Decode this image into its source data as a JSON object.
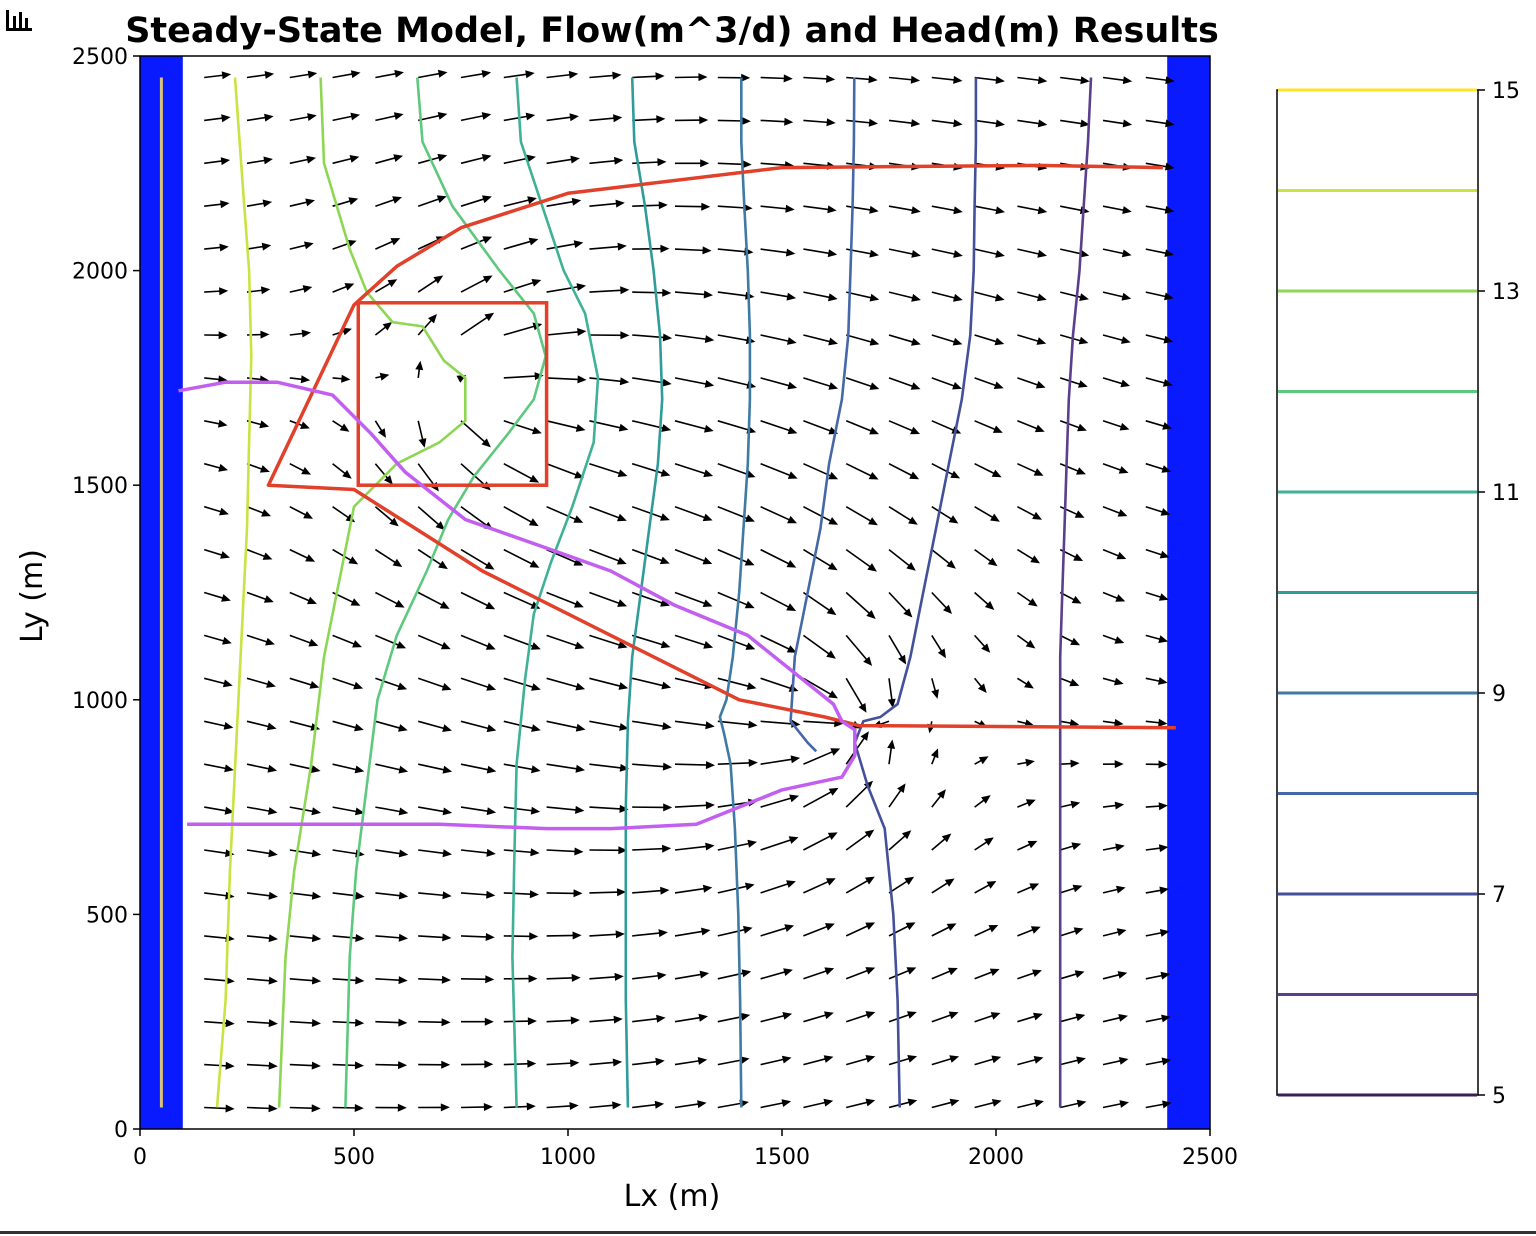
{
  "toolbar": {
    "icon": "bar-chart-icon"
  },
  "chart_data": {
    "type": "contour",
    "title": "Steady-State Model, Flow(m^3/d) and Head(m) Results",
    "xlabel": "Lx (m)",
    "ylabel": "Ly (m)",
    "xlim": [
      0,
      2500
    ],
    "ylim": [
      0,
      2500
    ],
    "xticks": [
      0,
      500,
      1000,
      1500,
      2000,
      2500
    ],
    "yticks": [
      0,
      500,
      1000,
      1500,
      2000,
      2500
    ],
    "colors": {
      "boundary": "#0a1aff",
      "red_line": "#e1402a",
      "purple_line": "#c25ef0",
      "left_line": "#d8c27a"
    },
    "constant_head_boundaries": [
      {
        "x": [
          0,
          100
        ],
        "y": [
          0,
          2500
        ]
      },
      {
        "x": [
          2400,
          2500
        ],
        "y": [
          0,
          2500
        ]
      }
    ],
    "head_contours": [
      {
        "level": 14.0,
        "color": "#c7e443",
        "points": [
          [
            222,
            2450
          ],
          [
            240,
            2200
          ],
          [
            255,
            2000
          ],
          [
            260,
            1800
          ],
          [
            255,
            1600
          ],
          [
            250,
            1400
          ],
          [
            240,
            1200
          ],
          [
            225,
            900
          ],
          [
            210,
            600
          ],
          [
            200,
            300
          ],
          [
            180,
            50
          ]
        ]
      },
      {
        "level": 13.0,
        "color": "#8ed654",
        "points": [
          [
            422,
            2450
          ],
          [
            430,
            2250
          ],
          [
            490,
            2050
          ],
          [
            530,
            1950
          ],
          [
            590,
            1880
          ],
          [
            660,
            1870
          ],
          [
            710,
            1790
          ],
          [
            760,
            1750
          ],
          [
            760,
            1650
          ],
          [
            700,
            1600
          ],
          [
            600,
            1550
          ],
          [
            500,
            1450
          ],
          [
            470,
            1300
          ],
          [
            430,
            1100
          ],
          [
            400,
            850
          ],
          [
            360,
            600
          ],
          [
            340,
            400
          ],
          [
            325,
            50
          ]
        ]
      },
      {
        "level": 12.0,
        "color": "#5ec87e",
        "points": [
          [
            648,
            2450
          ],
          [
            660,
            2300
          ],
          [
            730,
            2150
          ],
          [
            840,
            2000
          ],
          [
            920,
            1900
          ],
          [
            948,
            1800
          ],
          [
            920,
            1700
          ],
          [
            860,
            1620
          ],
          [
            780,
            1520
          ],
          [
            720,
            1420
          ],
          [
            670,
            1300
          ],
          [
            600,
            1150
          ],
          [
            555,
            1000
          ],
          [
            530,
            800
          ],
          [
            505,
            600
          ],
          [
            490,
            400
          ],
          [
            480,
            50
          ]
        ]
      },
      {
        "level": 11.0,
        "color": "#3fb197",
        "points": [
          [
            880,
            2450
          ],
          [
            890,
            2300
          ],
          [
            940,
            2150
          ],
          [
            990,
            2000
          ],
          [
            1040,
            1900
          ],
          [
            1070,
            1750
          ],
          [
            1060,
            1600
          ],
          [
            1010,
            1450
          ],
          [
            960,
            1320
          ],
          [
            920,
            1200
          ],
          [
            900,
            1050
          ],
          [
            880,
            850
          ],
          [
            875,
            650
          ],
          [
            870,
            400
          ],
          [
            880,
            50
          ]
        ]
      },
      {
        "level": 10.0,
        "color": "#2f9c9a",
        "points": [
          [
            1150,
            2450
          ],
          [
            1155,
            2300
          ],
          [
            1180,
            2150
          ],
          [
            1200,
            2000
          ],
          [
            1215,
            1850
          ],
          [
            1220,
            1700
          ],
          [
            1210,
            1550
          ],
          [
            1190,
            1400
          ],
          [
            1170,
            1250
          ],
          [
            1150,
            1100
          ],
          [
            1140,
            950
          ],
          [
            1135,
            750
          ],
          [
            1135,
            500
          ],
          [
            1135,
            300
          ],
          [
            1140,
            50
          ]
        ]
      },
      {
        "level": 9.0,
        "color": "#3e7aa4",
        "points": [
          [
            1405,
            2450
          ],
          [
            1405,
            2300
          ],
          [
            1412,
            2150
          ],
          [
            1420,
            2000
          ],
          [
            1425,
            1850
          ],
          [
            1425,
            1700
          ],
          [
            1420,
            1550
          ],
          [
            1410,
            1400
          ],
          [
            1400,
            1250
          ],
          [
            1385,
            1100
          ],
          [
            1370,
            1000
          ],
          [
            1355,
            960
          ],
          [
            1365,
            920
          ],
          [
            1380,
            850
          ],
          [
            1390,
            700
          ],
          [
            1398,
            500
          ],
          [
            1402,
            300
          ],
          [
            1405,
            50
          ]
        ]
      },
      {
        "level": 8.0,
        "color": "#4568a8",
        "points": [
          [
            1669,
            2450
          ],
          [
            1668,
            2300
          ],
          [
            1665,
            2150
          ],
          [
            1660,
            2000
          ],
          [
            1655,
            1850
          ],
          [
            1640,
            1700
          ],
          [
            1610,
            1550
          ],
          [
            1590,
            1400
          ],
          [
            1560,
            1250
          ],
          [
            1530,
            1100
          ],
          [
            1520,
            950
          ],
          [
            1560,
            900
          ],
          [
            1580,
            880
          ]
        ]
      },
      {
        "level": 7.0,
        "color": "#44509a",
        "points": [
          [
            1953,
            2450
          ],
          [
            1953,
            2300
          ],
          [
            1950,
            2150
          ],
          [
            1948,
            2000
          ],
          [
            1940,
            1850
          ],
          [
            1920,
            1700
          ],
          [
            1890,
            1550
          ],
          [
            1860,
            1400
          ],
          [
            1830,
            1250
          ],
          [
            1800,
            1100
          ],
          [
            1770,
            990
          ],
          [
            1730,
            960
          ],
          [
            1690,
            950
          ],
          [
            1670,
            900
          ],
          [
            1700,
            800
          ],
          [
            1740,
            700
          ],
          [
            1760,
            500
          ],
          [
            1770,
            300
          ],
          [
            1775,
            50
          ]
        ]
      },
      {
        "level": 6.0,
        "color": "#5b3f8c",
        "points": [
          [
            2222,
            2450
          ],
          [
            2215,
            2300
          ],
          [
            2205,
            2150
          ],
          [
            2195,
            2000
          ],
          [
            2180,
            1850
          ],
          [
            2170,
            1700
          ],
          [
            2165,
            1550
          ],
          [
            2160,
            1400
          ],
          [
            2155,
            1250
          ],
          [
            2150,
            1100
          ],
          [
            2150,
            950
          ],
          [
            2150,
            800
          ],
          [
            2150,
            650
          ],
          [
            2150,
            500
          ],
          [
            2150,
            350
          ],
          [
            2150,
            200
          ],
          [
            2150,
            50
          ]
        ]
      }
    ],
    "red_outline": [
      [
        2390,
        2240
      ],
      [
        2100,
        2245
      ],
      [
        1500,
        2240
      ],
      [
        1000,
        2180
      ],
      [
        750,
        2100
      ],
      [
        600,
        2010
      ],
      [
        500,
        1920
      ],
      [
        300,
        1500
      ],
      [
        500,
        1490
      ],
      [
        800,
        1300
      ],
      [
        1100,
        1150
      ],
      [
        1400,
        1000
      ],
      [
        1600,
        960
      ],
      [
        1680,
        940
      ],
      [
        2420,
        935
      ]
    ],
    "red_box": {
      "x": [
        510,
        950
      ],
      "y": [
        1500,
        1925
      ]
    },
    "purple_curve": [
      [
        90,
        1720
      ],
      [
        200,
        1740
      ],
      [
        320,
        1740
      ],
      [
        450,
        1710
      ],
      [
        540,
        1620
      ],
      [
        620,
        1530
      ],
      [
        760,
        1420
      ],
      [
        960,
        1350
      ],
      [
        1100,
        1300
      ],
      [
        1250,
        1220
      ],
      [
        1420,
        1150
      ],
      [
        1520,
        1070
      ],
      [
        1620,
        990
      ],
      [
        1640,
        950
      ],
      [
        1670,
        930
      ],
      [
        1670,
        870
      ],
      [
        1640,
        820
      ],
      [
        1500,
        790
      ],
      [
        1300,
        710
      ],
      [
        1100,
        700
      ],
      [
        950,
        700
      ],
      [
        700,
        710
      ],
      [
        500,
        710
      ],
      [
        300,
        710
      ],
      [
        110,
        710
      ]
    ],
    "left_line": {
      "x": 50,
      "y": [
        50,
        2450
      ]
    },
    "quiver": {
      "x_start": 150,
      "x_step": 100,
      "y_start": 50,
      "y_step": 100,
      "nx": 23,
      "ny": 25,
      "well": [
        1640,
        950
      ],
      "recharge_box": [
        730,
        1710
      ]
    },
    "colorbar": {
      "levels": [
        5,
        6,
        7,
        8,
        9,
        10,
        11,
        12,
        13,
        14,
        15
      ],
      "tick_labels": [
        "5",
        "7",
        "9",
        "11",
        "13",
        "15"
      ],
      "tick_values": [
        5,
        7,
        9,
        11,
        13,
        15
      ],
      "colors": [
        "#3b1f55",
        "#5b3f8c",
        "#44509a",
        "#4568a8",
        "#3e7aa4",
        "#2f9c9a",
        "#3fb197",
        "#5ec87e",
        "#8ed654",
        "#c7e443",
        "#fde725"
      ]
    }
  }
}
